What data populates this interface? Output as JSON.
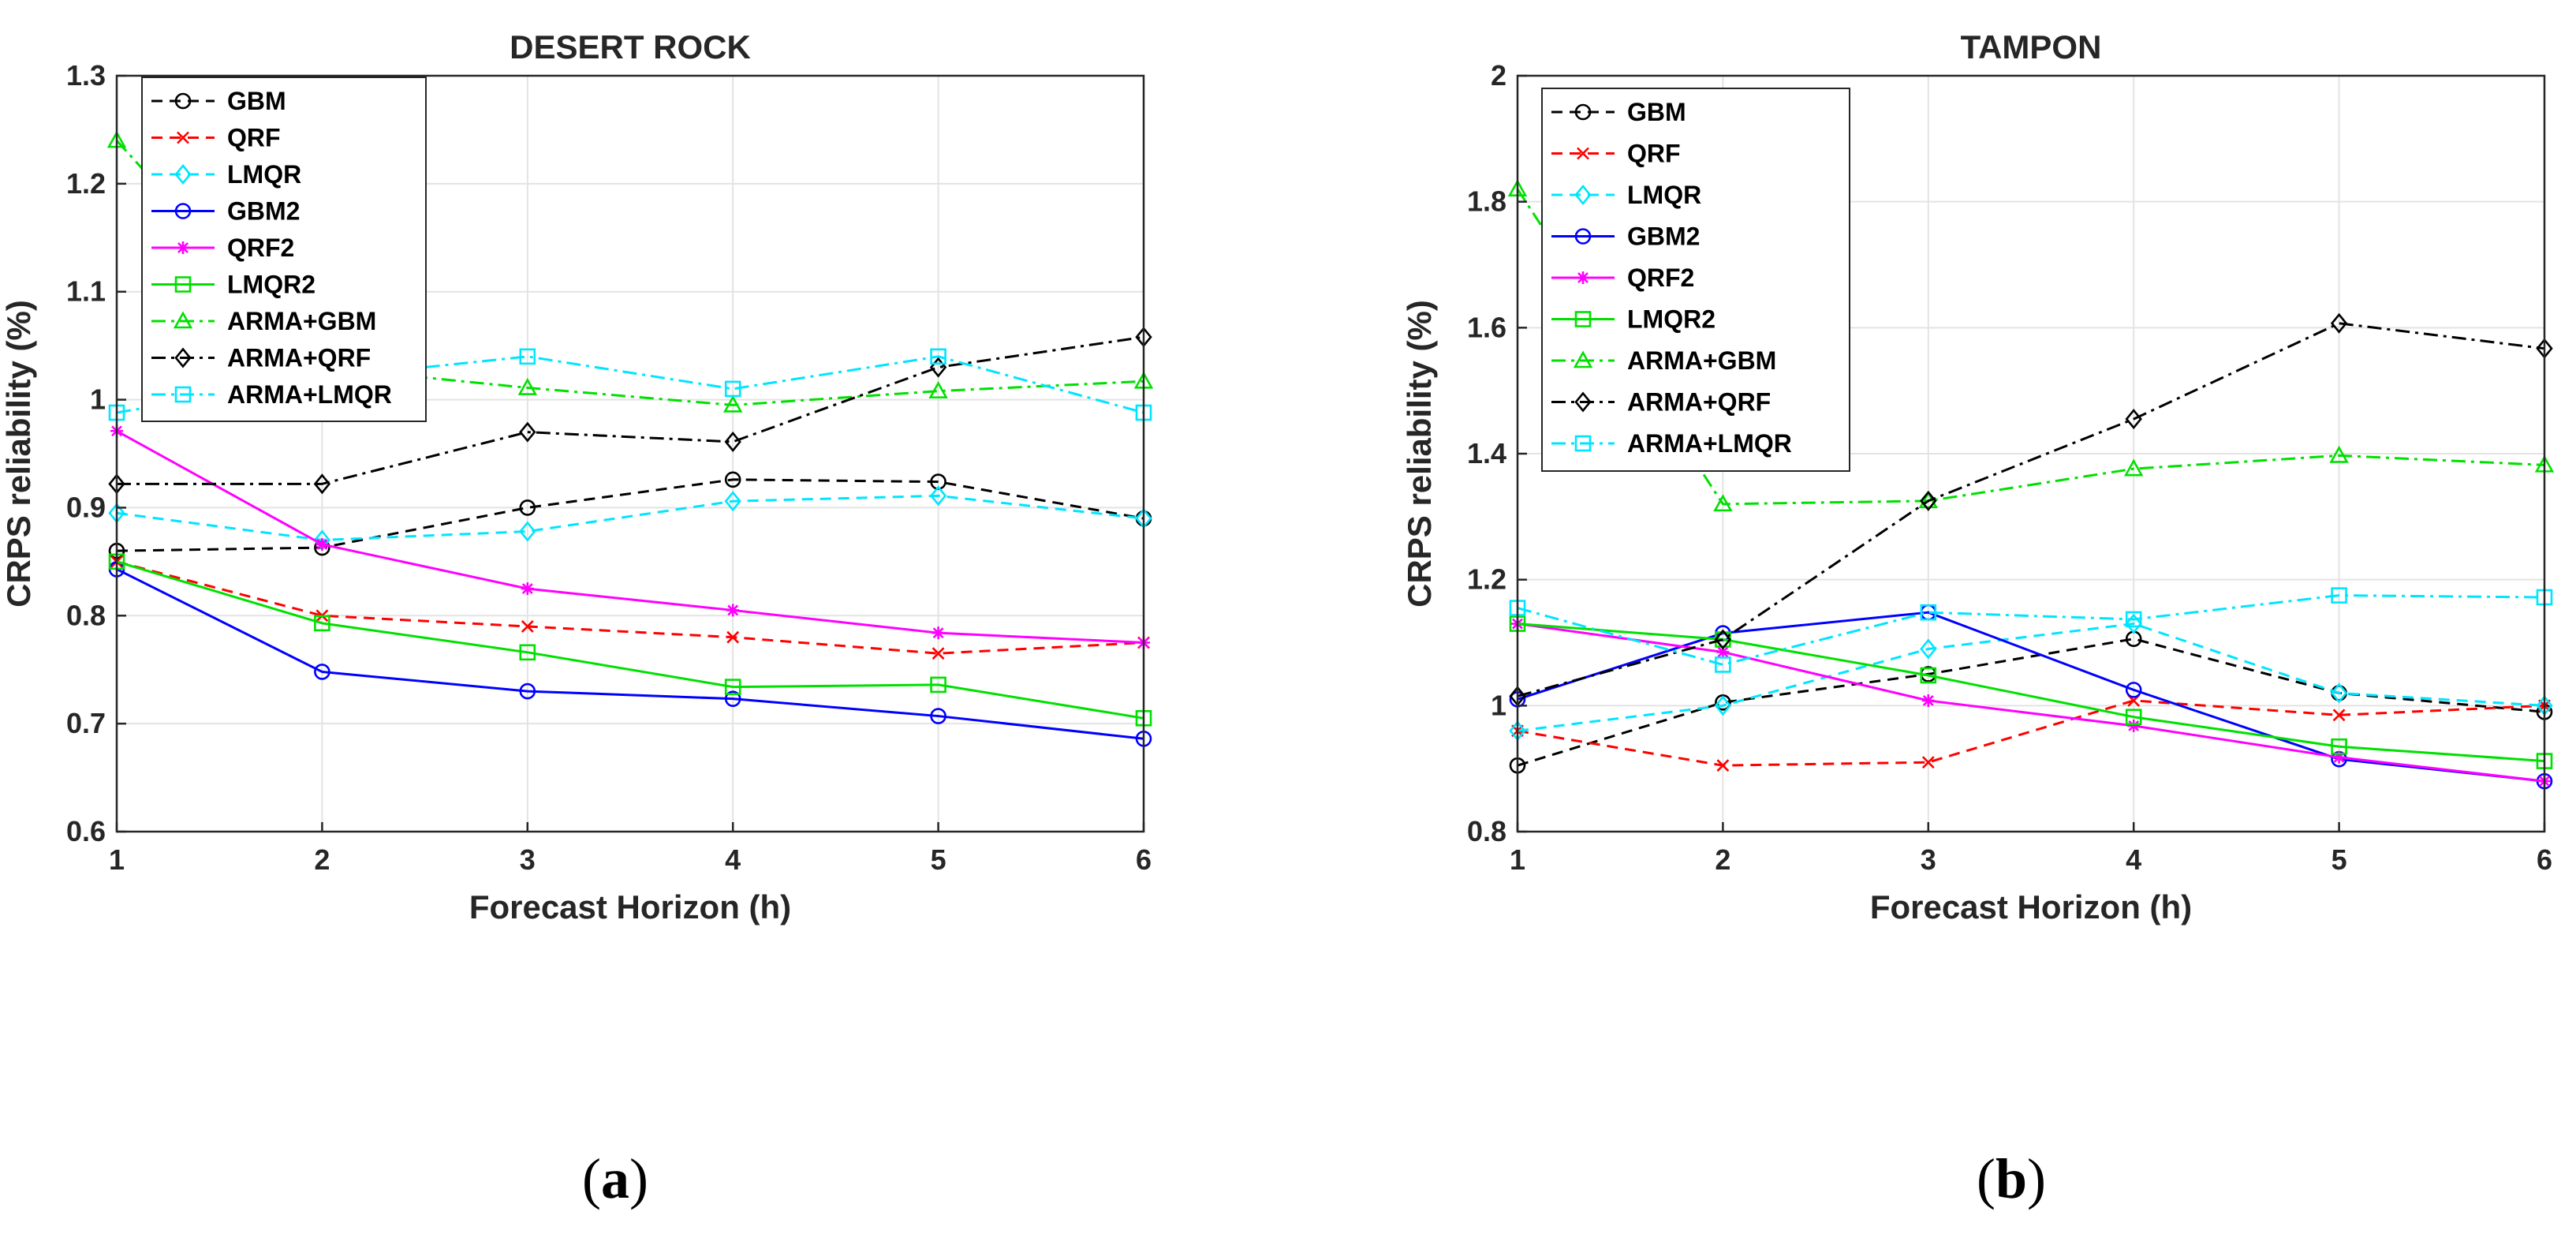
{
  "chart_data": [
    {
      "type": "line",
      "title": "DESERT ROCK",
      "xlabel": "Forecast Horizon (h)",
      "ylabel": "CRPS reliability (%)",
      "x": [
        1,
        2,
        3,
        4,
        5,
        6
      ],
      "xlim": [
        1,
        6
      ],
      "ylim": [
        0.6,
        1.3
      ],
      "xticks": [
        "1",
        "2",
        "3",
        "4",
        "5",
        "6"
      ],
      "yticks": [
        "0.6",
        "0.7",
        "0.8",
        "0.9",
        "1",
        "1.1",
        "1.2",
        "1.3"
      ],
      "grid": true,
      "legend_position": "top-left",
      "caption_open": "(",
      "caption_letter": "a",
      "caption_close": ")",
      "series": [
        {
          "name": "GBM",
          "color": "#000000",
          "dash": "dashed",
          "marker": "circle",
          "values": [
            0.86,
            0.863,
            0.9,
            0.926,
            0.924,
            0.89
          ]
        },
        {
          "name": "QRF",
          "color": "#ff0000",
          "dash": "dashed",
          "marker": "x",
          "values": [
            0.85,
            0.8,
            0.79,
            0.78,
            0.765,
            0.775
          ]
        },
        {
          "name": "LMQR",
          "color": "#00e5ff",
          "dash": "dashed",
          "marker": "diamond",
          "values": [
            0.895,
            0.87,
            0.878,
            0.906,
            0.911,
            0.89
          ]
        },
        {
          "name": "GBM2",
          "color": "#0000ff",
          "dash": "solid",
          "marker": "circle",
          "values": [
            0.843,
            0.748,
            0.73,
            0.723,
            0.707,
            0.686
          ]
        },
        {
          "name": "QRF2",
          "color": "#ff00ff",
          "dash": "solid",
          "marker": "star",
          "values": [
            0.971,
            0.866,
            0.825,
            0.805,
            0.784,
            0.775
          ]
        },
        {
          "name": "LMQR2",
          "color": "#00e000",
          "dash": "solid",
          "marker": "square",
          "values": [
            0.85,
            0.793,
            0.766,
            0.734,
            0.736,
            0.705
          ]
        },
        {
          "name": "ARMA+GBM",
          "color": "#00e000",
          "dash": "dashdot",
          "marker": "triangle",
          "values": [
            1.24,
            1.03,
            1.011,
            0.995,
            1.008,
            1.017
          ]
        },
        {
          "name": "ARMA+QRF",
          "color": "#000000",
          "dash": "dashdot",
          "marker": "diamond",
          "values": [
            0.922,
            0.922,
            0.97,
            0.961,
            1.03,
            1.058
          ]
        },
        {
          "name": "ARMA+LMQR",
          "color": "#00e5ff",
          "dash": "dashdot",
          "marker": "square",
          "values": [
            0.988,
            1.02,
            1.04,
            1.01,
            1.04,
            0.988
          ]
        }
      ]
    },
    {
      "type": "line",
      "title": "TAMPON",
      "xlabel": "Forecast Horizon (h)",
      "ylabel": "CRPS reliability (%)",
      "x": [
        1,
        2,
        3,
        4,
        5,
        6
      ],
      "xlim": [
        1,
        6
      ],
      "ylim": [
        0.8,
        2.0
      ],
      "xticks": [
        "1",
        "2",
        "3",
        "4",
        "5",
        "6"
      ],
      "yticks": [
        "0.8",
        "1",
        "1.2",
        "1.4",
        "1.6",
        "1.8",
        "2"
      ],
      "grid": true,
      "legend_position": "top-left",
      "caption_open": "(",
      "caption_letter": "b",
      "caption_close": ")",
      "series": [
        {
          "name": "GBM",
          "color": "#000000",
          "dash": "dashed",
          "marker": "circle",
          "values": [
            0.905,
            1.005,
            1.05,
            1.106,
            1.02,
            0.99
          ]
        },
        {
          "name": "QRF",
          "color": "#ff0000",
          "dash": "dashed",
          "marker": "x",
          "values": [
            0.96,
            0.905,
            0.91,
            1.008,
            0.985,
            1.0
          ]
        },
        {
          "name": "LMQR",
          "color": "#00e5ff",
          "dash": "dashed",
          "marker": "diamond",
          "values": [
            0.96,
            1.0,
            1.09,
            1.13,
            1.02,
            1.0
          ]
        },
        {
          "name": "GBM2",
          "color": "#0000ff",
          "dash": "solid",
          "marker": "circle",
          "values": [
            1.01,
            1.115,
            1.148,
            1.025,
            0.915,
            0.88
          ]
        },
        {
          "name": "QRF2",
          "color": "#ff00ff",
          "dash": "solid",
          "marker": "star",
          "values": [
            1.13,
            1.085,
            1.008,
            0.968,
            0.918,
            0.88
          ]
        },
        {
          "name": "LMQR2",
          "color": "#00e000",
          "dash": "solid",
          "marker": "square",
          "values": [
            1.13,
            1.105,
            1.048,
            0.982,
            0.935,
            0.912
          ]
        },
        {
          "name": "ARMA+GBM",
          "color": "#00e000",
          "dash": "dashdot",
          "marker": "triangle",
          "values": [
            1.82,
            1.32,
            1.325,
            1.376,
            1.397,
            1.382
          ]
        },
        {
          "name": "ARMA+QRF",
          "color": "#000000",
          "dash": "dashdot",
          "marker": "diamond",
          "values": [
            1.015,
            1.105,
            1.325,
            1.455,
            1.607,
            1.567
          ]
        },
        {
          "name": "ARMA+LMQR",
          "color": "#00e5ff",
          "dash": "dashdot",
          "marker": "square",
          "values": [
            1.155,
            1.065,
            1.148,
            1.137,
            1.175,
            1.172
          ]
        }
      ]
    }
  ]
}
